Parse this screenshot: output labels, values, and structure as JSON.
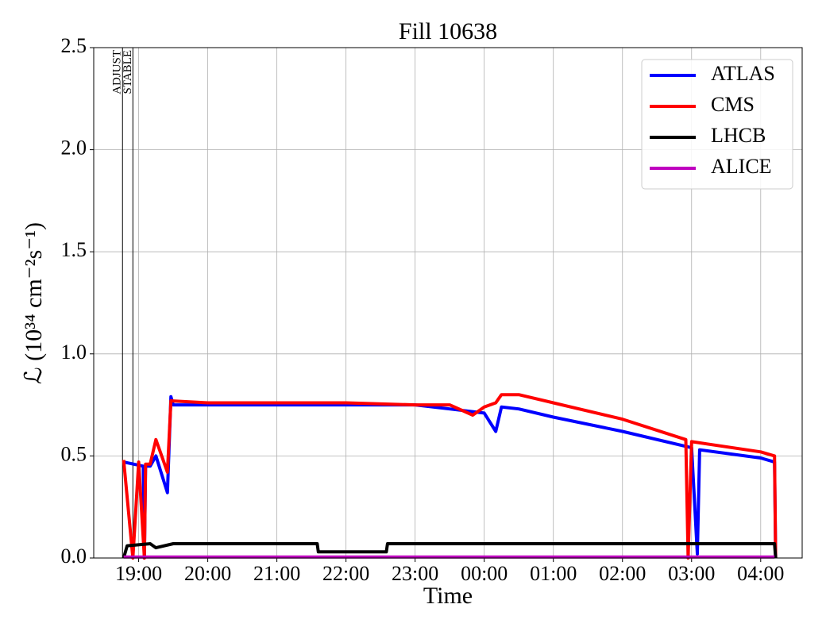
{
  "chart_data": {
    "type": "line",
    "title": "Fill 10638",
    "xlabel": "Time",
    "ylabel": "ℒ (10³⁴ cm⁻²s⁻¹)",
    "xlim": [
      "18:21",
      "04:36"
    ],
    "xticks": [
      "19:00",
      "20:00",
      "21:00",
      "22:00",
      "23:00",
      "00:00",
      "01:00",
      "02:00",
      "03:00",
      "04:00"
    ],
    "ylim": [
      0,
      2.5
    ],
    "yticks": [
      {
        "value": 0,
        "label": "0.0"
      },
      0.5,
      {
        "value": 1,
        "label": "1.0"
      },
      1.5,
      {
        "value": 2,
        "label": "2.0"
      },
      2.5
    ],
    "grid": true,
    "legend": "upper right",
    "annotations": [
      {
        "text": "ADJUST",
        "x": "18:46"
      },
      {
        "text": "STABLE",
        "x": "18:55"
      }
    ],
    "series": [
      {
        "name": "ATLAS",
        "color": "#0000ff",
        "x": [
          "18:47",
          "19:04",
          "19:05",
          "19:06",
          "19:10",
          "19:15",
          "19:25",
          "19:28",
          "19:30",
          "20:30",
          "21:30",
          "22:30",
          "23:00",
          "23:30",
          "00:00",
          "00:10",
          "00:15",
          "00:30",
          "01:00",
          "02:00",
          "03:00",
          "03:05",
          "03:07",
          "04:00",
          "04:12",
          "04:13"
        ],
        "values": [
          0.47,
          0.45,
          0.0,
          0.45,
          0.45,
          0.5,
          0.32,
          0.79,
          0.75,
          0.75,
          0.75,
          0.75,
          0.75,
          0.73,
          0.71,
          0.62,
          0.74,
          0.73,
          0.69,
          0.62,
          0.54,
          0.02,
          0.53,
          0.49,
          0.47,
          0.0
        ]
      },
      {
        "name": "CMS",
        "color": "#ff0000",
        "x": [
          "18:47",
          "18:55",
          "19:00",
          "19:05",
          "19:06",
          "19:10",
          "19:15",
          "19:20",
          "19:25",
          "19:28",
          "20:00",
          "21:00",
          "22:00",
          "23:00",
          "23:30",
          "23:50",
          "00:00",
          "00:10",
          "00:15",
          "00:30",
          "01:00",
          "02:00",
          "02:55",
          "02:57",
          "03:00",
          "04:00",
          "04:12",
          "04:13"
        ],
        "values": [
          0.48,
          0.0,
          0.47,
          0.0,
          0.46,
          0.46,
          0.58,
          0.5,
          0.42,
          0.77,
          0.76,
          0.76,
          0.76,
          0.75,
          0.75,
          0.7,
          0.74,
          0.76,
          0.8,
          0.8,
          0.76,
          0.68,
          0.58,
          0.0,
          0.57,
          0.52,
          0.5,
          0.0
        ]
      },
      {
        "name": "LHCB",
        "color": "#000000",
        "x": [
          "18:47",
          "18:50",
          "19:10",
          "19:15",
          "19:30",
          "21:00",
          "21:35",
          "21:36",
          "22:35",
          "22:36",
          "04:12",
          "04:13"
        ],
        "values": [
          0.0,
          0.06,
          0.07,
          0.05,
          0.07,
          0.07,
          0.07,
          0.03,
          0.03,
          0.07,
          0.07,
          0.0
        ]
      },
      {
        "name": "ALICE",
        "color": "#bf00bf",
        "x": [
          "18:47",
          "04:12"
        ],
        "values": [
          0.005,
          0.005
        ]
      }
    ]
  }
}
